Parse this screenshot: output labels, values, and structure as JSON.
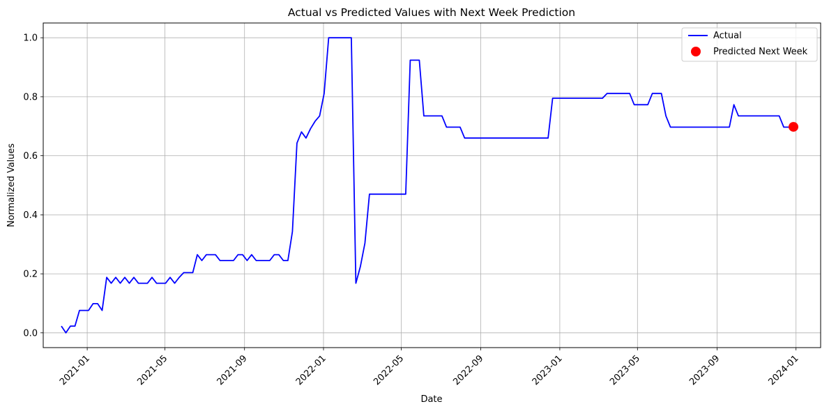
{
  "chart_data": {
    "type": "line",
    "title": "Actual vs Predicted Values with Next Week Prediction",
    "xlabel": "Date",
    "ylabel": "Normalized Values",
    "xlim": [
      "2020-10-25",
      "2024-02-08"
    ],
    "ylim": [
      -0.05,
      1.05
    ],
    "grid": true,
    "legend_position": "top-right",
    "x_ticks": [
      "2021-01",
      "2021-05",
      "2021-09",
      "2022-01",
      "2022-05",
      "2022-09",
      "2023-01",
      "2023-05",
      "2023-09",
      "2024-01"
    ],
    "x_tick_dates": [
      "2021-01-01",
      "2021-05-01",
      "2021-09-01",
      "2022-01-01",
      "2022-05-01",
      "2022-09-01",
      "2023-01-01",
      "2023-05-01",
      "2023-09-01",
      "2024-01-01"
    ],
    "y_ticks": [
      "0.0",
      "0.2",
      "0.4",
      "0.6",
      "0.8",
      "1.0"
    ],
    "y_tick_values": [
      0,
      0.2,
      0.4,
      0.6,
      0.8,
      1.0
    ],
    "series": [
      {
        "name": "Actual",
        "color": "#0000ff",
        "points": [
          [
            "2020-11-22",
            0.023
          ],
          [
            "2020-11-29",
            0.0
          ],
          [
            "2020-12-06",
            0.023
          ],
          [
            "2020-12-13",
            0.023
          ],
          [
            "2020-12-20",
            0.076
          ],
          [
            "2020-12-27",
            0.076
          ],
          [
            "2021-01-03",
            0.076
          ],
          [
            "2021-01-10",
            0.099
          ],
          [
            "2021-01-17",
            0.099
          ],
          [
            "2021-01-24",
            0.076
          ],
          [
            "2021-01-31",
            0.188
          ],
          [
            "2021-02-07",
            0.168
          ],
          [
            "2021-02-14",
            0.188
          ],
          [
            "2021-02-21",
            0.168
          ],
          [
            "2021-02-28",
            0.188
          ],
          [
            "2021-03-07",
            0.168
          ],
          [
            "2021-03-14",
            0.188
          ],
          [
            "2021-03-21",
            0.168
          ],
          [
            "2021-03-28",
            0.168
          ],
          [
            "2021-04-04",
            0.168
          ],
          [
            "2021-04-11",
            0.188
          ],
          [
            "2021-04-18",
            0.168
          ],
          [
            "2021-04-25",
            0.168
          ],
          [
            "2021-05-02",
            0.168
          ],
          [
            "2021-05-09",
            0.188
          ],
          [
            "2021-05-16",
            0.168
          ],
          [
            "2021-05-23",
            0.188
          ],
          [
            "2021-05-30",
            0.204
          ],
          [
            "2021-06-06",
            0.204
          ],
          [
            "2021-06-13",
            0.204
          ],
          [
            "2021-06-20",
            0.265
          ],
          [
            "2021-06-27",
            0.245
          ],
          [
            "2021-07-04",
            0.265
          ],
          [
            "2021-07-11",
            0.265
          ],
          [
            "2021-07-18",
            0.265
          ],
          [
            "2021-07-25",
            0.245
          ],
          [
            "2021-08-01",
            0.245
          ],
          [
            "2021-08-08",
            0.245
          ],
          [
            "2021-08-15",
            0.245
          ],
          [
            "2021-08-22",
            0.265
          ],
          [
            "2021-08-29",
            0.265
          ],
          [
            "2021-09-05",
            0.245
          ],
          [
            "2021-09-12",
            0.265
          ],
          [
            "2021-09-19",
            0.245
          ],
          [
            "2021-09-26",
            0.245
          ],
          [
            "2021-10-03",
            0.245
          ],
          [
            "2021-10-10",
            0.245
          ],
          [
            "2021-10-17",
            0.265
          ],
          [
            "2021-10-24",
            0.265
          ],
          [
            "2021-10-31",
            0.245
          ],
          [
            "2021-11-07",
            0.245
          ],
          [
            "2021-11-14",
            0.343
          ],
          [
            "2021-11-21",
            0.643
          ],
          [
            "2021-11-28",
            0.681
          ],
          [
            "2021-12-05",
            0.66
          ],
          [
            "2021-12-12",
            0.692
          ],
          [
            "2021-12-19",
            0.717
          ],
          [
            "2021-12-26",
            0.735
          ],
          [
            "2022-01-02",
            0.811
          ],
          [
            "2022-01-09",
            1.0
          ],
          [
            "2022-01-16",
            1.0
          ],
          [
            "2022-01-23",
            1.0
          ],
          [
            "2022-01-30",
            1.0
          ],
          [
            "2022-02-06",
            1.0
          ],
          [
            "2022-02-13",
            1.0
          ],
          [
            "2022-02-20",
            0.168
          ],
          [
            "2022-02-27",
            0.225
          ],
          [
            "2022-03-06",
            0.304
          ],
          [
            "2022-03-13",
            0.47
          ],
          [
            "2022-03-20",
            0.47
          ],
          [
            "2022-03-27",
            0.47
          ],
          [
            "2022-04-03",
            0.47
          ],
          [
            "2022-04-10",
            0.47
          ],
          [
            "2022-04-17",
            0.47
          ],
          [
            "2022-04-24",
            0.47
          ],
          [
            "2022-05-01",
            0.47
          ],
          [
            "2022-05-08",
            0.47
          ],
          [
            "2022-05-15",
            0.924
          ],
          [
            "2022-05-22",
            0.924
          ],
          [
            "2022-05-29",
            0.924
          ],
          [
            "2022-06-05",
            0.735
          ],
          [
            "2022-06-12",
            0.735
          ],
          [
            "2022-06-19",
            0.735
          ],
          [
            "2022-06-26",
            0.735
          ],
          [
            "2022-07-03",
            0.735
          ],
          [
            "2022-07-10",
            0.697
          ],
          [
            "2022-07-17",
            0.697
          ],
          [
            "2022-07-24",
            0.697
          ],
          [
            "2022-07-31",
            0.697
          ],
          [
            "2022-08-07",
            0.66
          ],
          [
            "2022-08-14",
            0.66
          ],
          [
            "2022-09-01",
            0.66
          ],
          [
            "2022-10-01",
            0.66
          ],
          [
            "2022-11-01",
            0.66
          ],
          [
            "2022-12-01",
            0.66
          ],
          [
            "2022-12-14",
            0.66
          ],
          [
            "2022-12-21",
            0.795
          ],
          [
            "2023-01-01",
            0.795
          ],
          [
            "2023-02-01",
            0.795
          ],
          [
            "2023-03-08",
            0.795
          ],
          [
            "2023-03-15",
            0.811
          ],
          [
            "2023-04-01",
            0.811
          ],
          [
            "2023-04-19",
            0.811
          ],
          [
            "2023-04-26",
            0.773
          ],
          [
            "2023-05-03",
            0.773
          ],
          [
            "2023-05-10",
            0.773
          ],
          [
            "2023-05-17",
            0.773
          ],
          [
            "2023-05-24",
            0.811
          ],
          [
            "2023-05-31",
            0.811
          ],
          [
            "2023-06-07",
            0.811
          ],
          [
            "2023-06-14",
            0.735
          ],
          [
            "2023-06-21",
            0.697
          ],
          [
            "2023-07-01",
            0.697
          ],
          [
            "2023-08-01",
            0.697
          ],
          [
            "2023-09-01",
            0.697
          ],
          [
            "2023-09-20",
            0.697
          ],
          [
            "2023-09-27",
            0.773
          ],
          [
            "2023-10-04",
            0.735
          ],
          [
            "2023-10-11",
            0.735
          ],
          [
            "2023-11-01",
            0.735
          ],
          [
            "2023-12-01",
            0.735
          ],
          [
            "2023-12-06",
            0.735
          ],
          [
            "2023-12-13",
            0.697
          ],
          [
            "2023-12-20",
            0.697
          ],
          [
            "2023-12-27",
            0.697
          ]
        ]
      },
      {
        "name": "Predicted Next Week",
        "color": "#ff0000",
        "marker": "circle",
        "points": [
          [
            "2023-12-28",
            0.698
          ]
        ]
      }
    ]
  }
}
